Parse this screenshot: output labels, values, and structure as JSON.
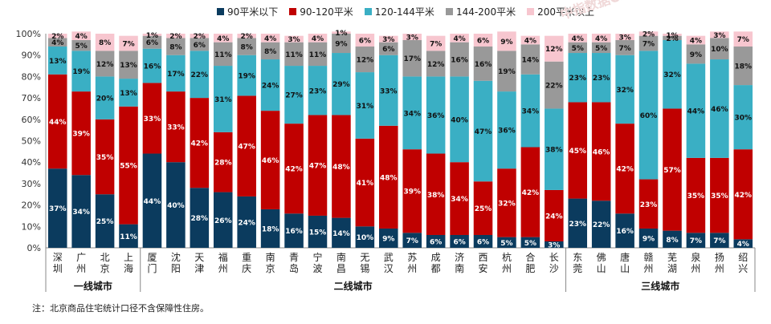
{
  "chart_data": {
    "type": "bar",
    "stacked": true,
    "ylim": [
      0,
      100
    ],
    "yticks": [
      "0%",
      "10%",
      "20%",
      "30%",
      "40%",
      "50%",
      "60%",
      "70%",
      "80%",
      "90%",
      "100%"
    ],
    "categories": [
      "深圳",
      "广州",
      "北京",
      "上海",
      "厦门",
      "沈阳",
      "天津",
      "福州",
      "重庆",
      "南京",
      "青岛",
      "宁波",
      "南昌",
      "无锡",
      "武汉",
      "苏州",
      "成都",
      "济南",
      "西安",
      "杭州",
      "合肥",
      "长沙",
      "东莞",
      "佛山",
      "唐山",
      "赣州",
      "芜湖",
      "泉州",
      "扬州",
      "绍兴"
    ],
    "groups": [
      {
        "label": "一线城市",
        "start": 0,
        "end": 3
      },
      {
        "label": "二线城市",
        "start": 4,
        "end": 21
      },
      {
        "label": "三线城市",
        "start": 22,
        "end": 29
      }
    ],
    "series": [
      {
        "name": "90平米以下",
        "color": "#0b3b5e",
        "values": [
          37,
          34,
          25,
          11,
          44,
          40,
          28,
          26,
          24,
          18,
          16,
          15,
          14,
          10,
          9,
          7,
          6,
          6,
          6,
          5,
          5,
          3,
          23,
          22,
          16,
          9,
          8,
          7,
          7,
          4
        ]
      },
      {
        "name": "90-120平米",
        "color": "#c00000",
        "values": [
          44,
          39,
          35,
          55,
          33,
          33,
          42,
          28,
          47,
          46,
          42,
          47,
          48,
          41,
          48,
          39,
          38,
          34,
          25,
          32,
          42,
          24,
          45,
          46,
          42,
          23,
          57,
          35,
          35,
          42
        ]
      },
      {
        "name": "120-144平米",
        "color": "#3aafc4",
        "values": [
          13,
          19,
          20,
          13,
          16,
          17,
          22,
          31,
          19,
          24,
          27,
          23,
          29,
          31,
          33,
          34,
          36,
          40,
          47,
          36,
          34,
          38,
          23,
          23,
          32,
          60,
          32,
          44,
          46,
          30
        ]
      },
      {
        "name": "144-200平米",
        "color": "#999999",
        "values": [
          4,
          5,
          12,
          13,
          6,
          8,
          6,
          11,
          8,
          8,
          11,
          11,
          9,
          12,
          6,
          17,
          12,
          16,
          16,
          19,
          14,
          22,
          5,
          5,
          7,
          7,
          2,
          9,
          10,
          18
        ]
      },
      {
        "name": "200平米以上",
        "color": "#f7c6cf",
        "values": [
          2,
          4,
          8,
          7,
          1,
          2,
          2,
          4,
          2,
          4,
          3,
          4,
          1,
          6,
          3,
          3,
          7,
          4,
          6,
          9,
          4,
          12,
          4,
          4,
          3,
          2,
          1,
          4,
          3,
          7
        ]
      }
    ]
  },
  "note": "注：北京商品住宅统计口径不含保障性住房。",
  "watermark": "中指数据CREIS"
}
